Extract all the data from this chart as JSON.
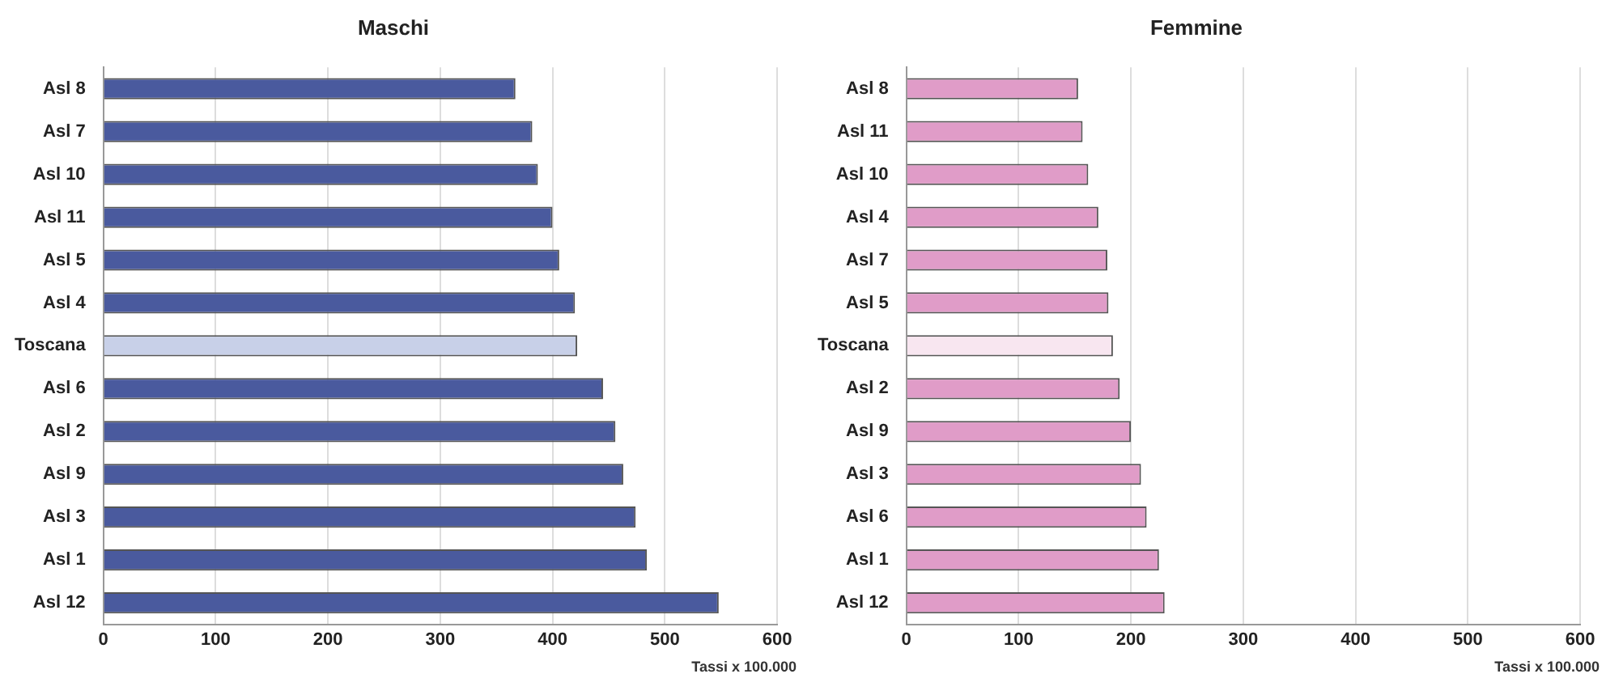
{
  "chart_data": [
    {
      "type": "bar",
      "orientation": "horizontal",
      "title": "Maschi",
      "categories": [
        "Asl 8",
        "Asl 7",
        "Asl 10",
        "Asl 11",
        "Asl 5",
        "Asl 4",
        "Toscana",
        "Asl 6",
        "Asl 2",
        "Asl 9",
        "Asl 3",
        "Asl 1",
        "Asl 12"
      ],
      "values": [
        367,
        382,
        387,
        400,
        406,
        420,
        422,
        445,
        456,
        463,
        474,
        484,
        548
      ],
      "colors": [
        "#4a5a9e",
        "#4a5a9e",
        "#4a5a9e",
        "#4a5a9e",
        "#4a5a9e",
        "#4a5a9e",
        "#c8d0e8",
        "#4a5a9e",
        "#4a5a9e",
        "#4a5a9e",
        "#4a5a9e",
        "#4a5a9e",
        "#4a5a9e"
      ],
      "xlim": [
        0,
        600
      ],
      "xticks": [
        0,
        100,
        200,
        300,
        400,
        500,
        600
      ],
      "grid": "x",
      "annotations": [
        "Tassi x 100.000"
      ]
    },
    {
      "type": "bar",
      "orientation": "horizontal",
      "title": "Femmine",
      "categories": [
        "Asl 8",
        "Asl 11",
        "Asl 10",
        "Asl 4",
        "Asl 7",
        "Asl 5",
        "Toscana",
        "Asl 2",
        "Asl 9",
        "Asl 3",
        "Asl 6",
        "Asl 1",
        "Asl 12"
      ],
      "values": [
        153,
        157,
        162,
        171,
        179,
        180,
        184,
        190,
        200,
        209,
        214,
        225,
        230
      ],
      "colors": [
        "#e09cc8",
        "#e09cc8",
        "#e09cc8",
        "#e09cc8",
        "#e09cc8",
        "#e09cc8",
        "#f8e6f0",
        "#e09cc8",
        "#e09cc8",
        "#e09cc8",
        "#e09cc8",
        "#e09cc8",
        "#e09cc8"
      ],
      "xlim": [
        0,
        600
      ],
      "xticks": [
        0,
        100,
        200,
        300,
        400,
        500,
        600
      ],
      "grid": "x",
      "annotations": [
        "Tassi x 100.000"
      ]
    }
  ]
}
